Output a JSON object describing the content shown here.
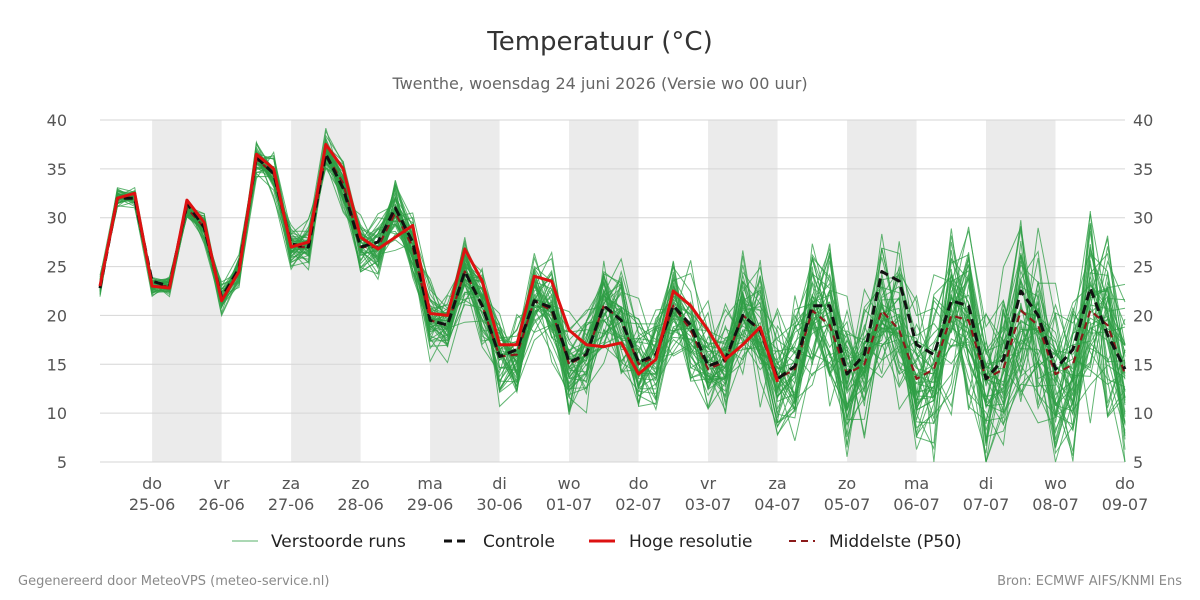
{
  "chart_data": {
    "type": "line",
    "title": "Temperatuur (°C)",
    "subtitle": "Twenthe, woensdag 24 juni 2026 (Versie wo 00 uur)",
    "ylim": [
      5,
      40
    ],
    "yticks": [
      5,
      10,
      15,
      20,
      25,
      30,
      35,
      40
    ],
    "grid": true,
    "weekend_shading": true,
    "xlim_days": [
      -0.75,
      14
    ],
    "day_labels": [
      {
        "day": "do",
        "date": "25-06"
      },
      {
        "day": "vr",
        "date": "26-06"
      },
      {
        "day": "za",
        "date": "27-06"
      },
      {
        "day": "zo",
        "date": "28-06"
      },
      {
        "day": "ma",
        "date": "29-06"
      },
      {
        "day": "di",
        "date": "30-06"
      },
      {
        "day": "wo",
        "date": "01-07"
      },
      {
        "day": "do",
        "date": "02-07"
      },
      {
        "day": "vr",
        "date": "03-07"
      },
      {
        "day": "za",
        "date": "04-07"
      },
      {
        "day": "zo",
        "date": "05-07"
      },
      {
        "day": "ma",
        "date": "06-07"
      },
      {
        "day": "di",
        "date": "07-07"
      },
      {
        "day": "wo",
        "date": "08-07"
      },
      {
        "day": "do",
        "date": "09-07"
      }
    ],
    "series": [
      {
        "name": "Hoge resolutie",
        "color": "#dd1111",
        "style": "solid",
        "points": [
          [
            -0.75,
            23.0
          ],
          [
            -0.5,
            32.0
          ],
          [
            -0.25,
            32.5
          ],
          [
            0,
            23.0
          ],
          [
            0.25,
            22.8
          ],
          [
            0.5,
            31.8
          ],
          [
            0.75,
            29.5
          ],
          [
            1,
            21.5
          ],
          [
            1.25,
            24.5
          ],
          [
            1.5,
            36.5
          ],
          [
            1.75,
            35.0
          ],
          [
            2,
            27.0
          ],
          [
            2.25,
            27.5
          ],
          [
            2.5,
            37.5
          ],
          [
            2.75,
            35.0
          ],
          [
            3,
            28.0
          ],
          [
            3.25,
            26.8
          ],
          [
            3.5,
            28.0
          ],
          [
            3.75,
            29.2
          ],
          [
            4,
            20.2
          ],
          [
            4.25,
            20.0
          ],
          [
            4.5,
            26.8
          ],
          [
            4.75,
            23.5
          ],
          [
            5,
            17.0
          ],
          [
            5.25,
            17.0
          ],
          [
            5.5,
            24.0
          ],
          [
            5.75,
            23.5
          ],
          [
            6,
            18.5
          ],
          [
            6.25,
            17.0
          ],
          [
            6.5,
            16.8
          ],
          [
            6.75,
            17.2
          ],
          [
            7,
            14.0
          ],
          [
            7.25,
            15.5
          ],
          [
            7.5,
            22.5
          ],
          [
            7.75,
            21.0
          ],
          [
            8,
            18.5
          ],
          [
            8.25,
            15.5
          ],
          [
            8.5,
            17.0
          ],
          [
            8.75,
            18.8
          ],
          [
            9,
            13.2
          ]
        ]
      },
      {
        "name": "Controle",
        "color": "#111111",
        "style": "dashed",
        "points": [
          [
            -0.75,
            22.8
          ],
          [
            -0.5,
            32.0
          ],
          [
            -0.25,
            32.0
          ],
          [
            0,
            23.5
          ],
          [
            0.25,
            23.0
          ],
          [
            0.5,
            31.5
          ],
          [
            0.75,
            29.0
          ],
          [
            1,
            21.8
          ],
          [
            1.25,
            24.8
          ],
          [
            1.5,
            36.2
          ],
          [
            1.75,
            34.5
          ],
          [
            2,
            27.3
          ],
          [
            2.25,
            27.0
          ],
          [
            2.5,
            36.5
          ],
          [
            2.75,
            33.0
          ],
          [
            3,
            27.0
          ],
          [
            3.25,
            27.5
          ],
          [
            3.5,
            31.0
          ],
          [
            3.75,
            27.5
          ],
          [
            4,
            19.5
          ],
          [
            4.25,
            19.0
          ],
          [
            4.5,
            24.5
          ],
          [
            4.75,
            21.0
          ],
          [
            5,
            15.8
          ],
          [
            5.25,
            16.5
          ],
          [
            5.5,
            21.5
          ],
          [
            5.75,
            20.8
          ],
          [
            6,
            15.2
          ],
          [
            6.25,
            16.0
          ],
          [
            6.5,
            21.0
          ],
          [
            6.75,
            19.5
          ],
          [
            7,
            15.2
          ],
          [
            7.25,
            16.0
          ],
          [
            7.5,
            21.0
          ],
          [
            7.75,
            19.0
          ],
          [
            8,
            14.8
          ],
          [
            8.25,
            15.5
          ],
          [
            8.5,
            20.0
          ],
          [
            8.75,
            18.5
          ],
          [
            9,
            13.5
          ],
          [
            9.25,
            14.8
          ],
          [
            9.5,
            21.0
          ],
          [
            9.75,
            21.0
          ],
          [
            10,
            14.0
          ],
          [
            10.25,
            16.0
          ],
          [
            10.5,
            24.5
          ],
          [
            10.75,
            23.5
          ],
          [
            11,
            17.0
          ],
          [
            11.25,
            16.0
          ],
          [
            11.5,
            21.5
          ],
          [
            11.75,
            21.0
          ],
          [
            12,
            13.5
          ],
          [
            12.25,
            15.5
          ],
          [
            12.5,
            22.5
          ],
          [
            12.75,
            20.0
          ],
          [
            13,
            14.5
          ],
          [
            13.25,
            16.5
          ],
          [
            13.5,
            22.8
          ],
          [
            13.75,
            18.0
          ],
          [
            14,
            14.5
          ]
        ]
      },
      {
        "name": "Middelste (P50)",
        "color": "#8b1a1a",
        "style": "dashed",
        "points": [
          [
            -0.75,
            23.0
          ],
          [
            -0.5,
            32.0
          ],
          [
            -0.25,
            32.0
          ],
          [
            0,
            23.0
          ],
          [
            0.25,
            23.0
          ],
          [
            0.5,
            31.0
          ],
          [
            0.75,
            29.0
          ],
          [
            1,
            21.5
          ],
          [
            1.25,
            24.5
          ],
          [
            1.5,
            36.0
          ],
          [
            1.75,
            34.5
          ],
          [
            2,
            27.0
          ],
          [
            2.25,
            27.0
          ],
          [
            2.5,
            36.5
          ],
          [
            2.75,
            33.5
          ],
          [
            3,
            27.0
          ],
          [
            3.25,
            27.0
          ],
          [
            3.5,
            30.5
          ],
          [
            3.75,
            27.0
          ],
          [
            4,
            19.5
          ],
          [
            4.25,
            19.0
          ],
          [
            4.5,
            24.5
          ],
          [
            4.75,
            21.0
          ],
          [
            5,
            15.8
          ],
          [
            5.25,
            16.0
          ],
          [
            5.5,
            21.5
          ],
          [
            5.75,
            20.5
          ],
          [
            6,
            15.0
          ],
          [
            6.25,
            16.0
          ],
          [
            6.5,
            21.0
          ],
          [
            6.75,
            19.5
          ],
          [
            7,
            15.0
          ],
          [
            7.25,
            15.8
          ],
          [
            7.5,
            21.0
          ],
          [
            7.75,
            18.5
          ],
          [
            8,
            14.5
          ],
          [
            8.25,
            15.3
          ],
          [
            8.5,
            20.0
          ],
          [
            8.75,
            18.5
          ],
          [
            9,
            13.5
          ],
          [
            9.25,
            14.5
          ],
          [
            9.5,
            20.5
          ],
          [
            9.75,
            19.0
          ],
          [
            10,
            14.0
          ],
          [
            10.25,
            15.0
          ],
          [
            10.5,
            20.5
          ],
          [
            10.75,
            18.5
          ],
          [
            11,
            13.5
          ],
          [
            11.25,
            14.5
          ],
          [
            11.5,
            20.0
          ],
          [
            11.75,
            19.5
          ],
          [
            12,
            13.5
          ],
          [
            12.25,
            14.5
          ],
          [
            12.5,
            20.5
          ],
          [
            12.75,
            19.0
          ],
          [
            13,
            14.0
          ],
          [
            13.25,
            15.0
          ],
          [
            13.5,
            20.5
          ],
          [
            13.75,
            19.0
          ],
          [
            14,
            14.0
          ]
        ]
      }
    ],
    "ensemble": {
      "name": "Verstoorde runs",
      "color": "#2e9e44",
      "member_count": 50
    },
    "legend": [
      "Verstoorde runs",
      "Controle",
      "Hoge resolutie",
      "Middelste (P50)"
    ],
    "legend_position": "bottom"
  },
  "footer": {
    "left": "Gegenereerd door MeteoVPS (meteo-service.nl)",
    "right": "Bron: ECMWF AIFS/KNMI Ens"
  }
}
